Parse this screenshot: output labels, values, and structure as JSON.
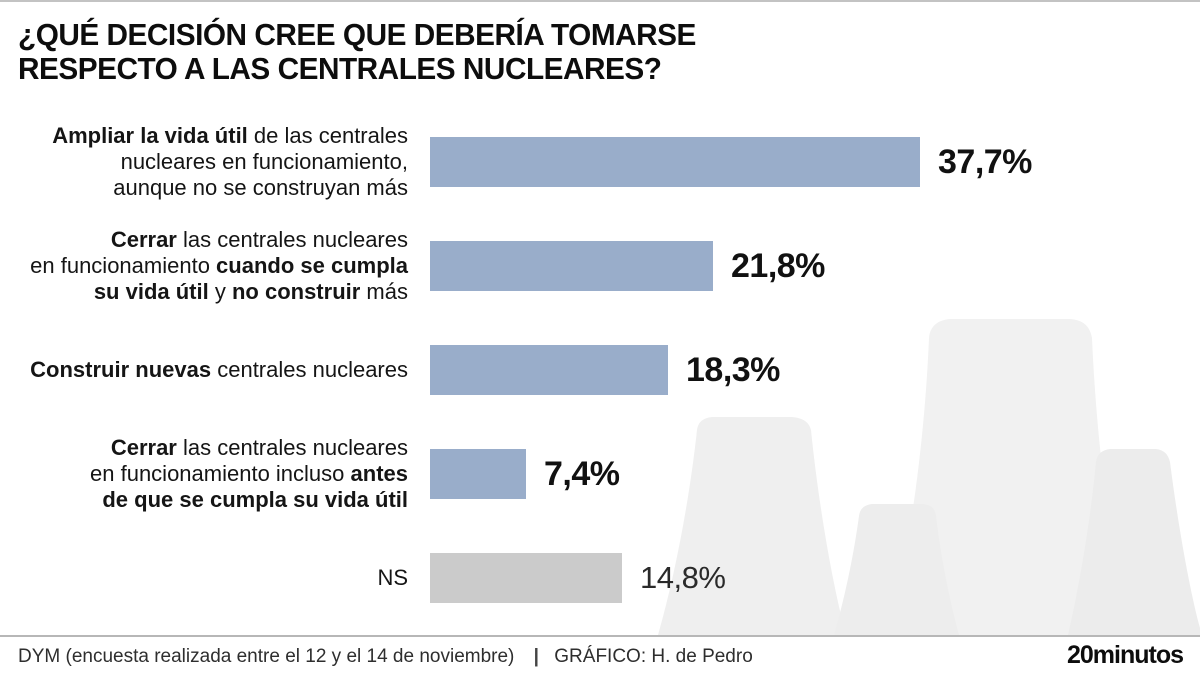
{
  "title": {
    "line1": "¿QUÉ DECISIÓN CREE QUE DEBERÍA TOMARSE",
    "line2": "RESPECTO A LAS CENTRALES NUCLEARES?"
  },
  "chart_data": {
    "type": "bar",
    "orientation": "horizontal",
    "title": "¿Qué decisión cree que debería tomarse respecto a las centrales nucleares?",
    "unit": "%",
    "xlim": [
      0,
      40
    ],
    "grid": false,
    "legend": false,
    "categories": [
      "Ampliar la vida útil de las centrales nucleares en funcionamiento, aunque no se construyan más",
      "Cerrar las centrales nucleares en funcionamiento cuando se cumpla su vida útil y no construir más",
      "Construir nuevas centrales nucleares",
      "Cerrar las centrales nucleares en funcionamiento incluso antes de que se cumpla su vida útil",
      "NS"
    ],
    "values": [
      37.7,
      21.8,
      18.3,
      7.4,
      14.8
    ],
    "value_labels": [
      "37,7%",
      "21,8%",
      "18,3%",
      "7,4%",
      "14,8%"
    ],
    "rows": [
      {
        "label": "**Ampliar la vida útil** de las centrales\nnucleares en funcionamiento,\naunque no se construyan más",
        "value": 37.7,
        "value_label": "37,7%",
        "color": "#99adca",
        "value_bold": true
      },
      {
        "label": "**Cerrar** las centrales nucleares\nen funcionamiento **cuando se cumpla**\n**su vida útil** y **no construir** más",
        "value": 21.8,
        "value_label": "21,8%",
        "color": "#99adca",
        "value_bold": true
      },
      {
        "label": "**Construir nuevas** centrales nucleares",
        "value": 18.3,
        "value_label": "18,3%",
        "color": "#99adca",
        "value_bold": true
      },
      {
        "label": "**Cerrar** las centrales nucleares\nen funcionamiento incluso **antes**\n**de que se cumpla su vida útil**",
        "value": 7.4,
        "value_label": "7,4%",
        "color": "#99adca",
        "value_bold": true
      },
      {
        "label": "NS",
        "value": 14.8,
        "value_label": "14,8%",
        "color": "#cbcbcb",
        "value_bold": false
      }
    ]
  },
  "footer": {
    "source": "DYM (encuesta realizada entre el 12 y el 14 de noviembre)",
    "separator": "|",
    "credit": "GRÁFICO: H. de Pedro",
    "brand": "20minutos"
  },
  "colors": {
    "bar_blue": "#99adca",
    "bar_gray": "#cbcbcb",
    "tower_fill_light": "#f1f1f1",
    "tower_fill_mid": "#ededed",
    "top_line": "#c3c3c3",
    "footer_line": "#b7b7b7",
    "text_black": "#111111"
  }
}
